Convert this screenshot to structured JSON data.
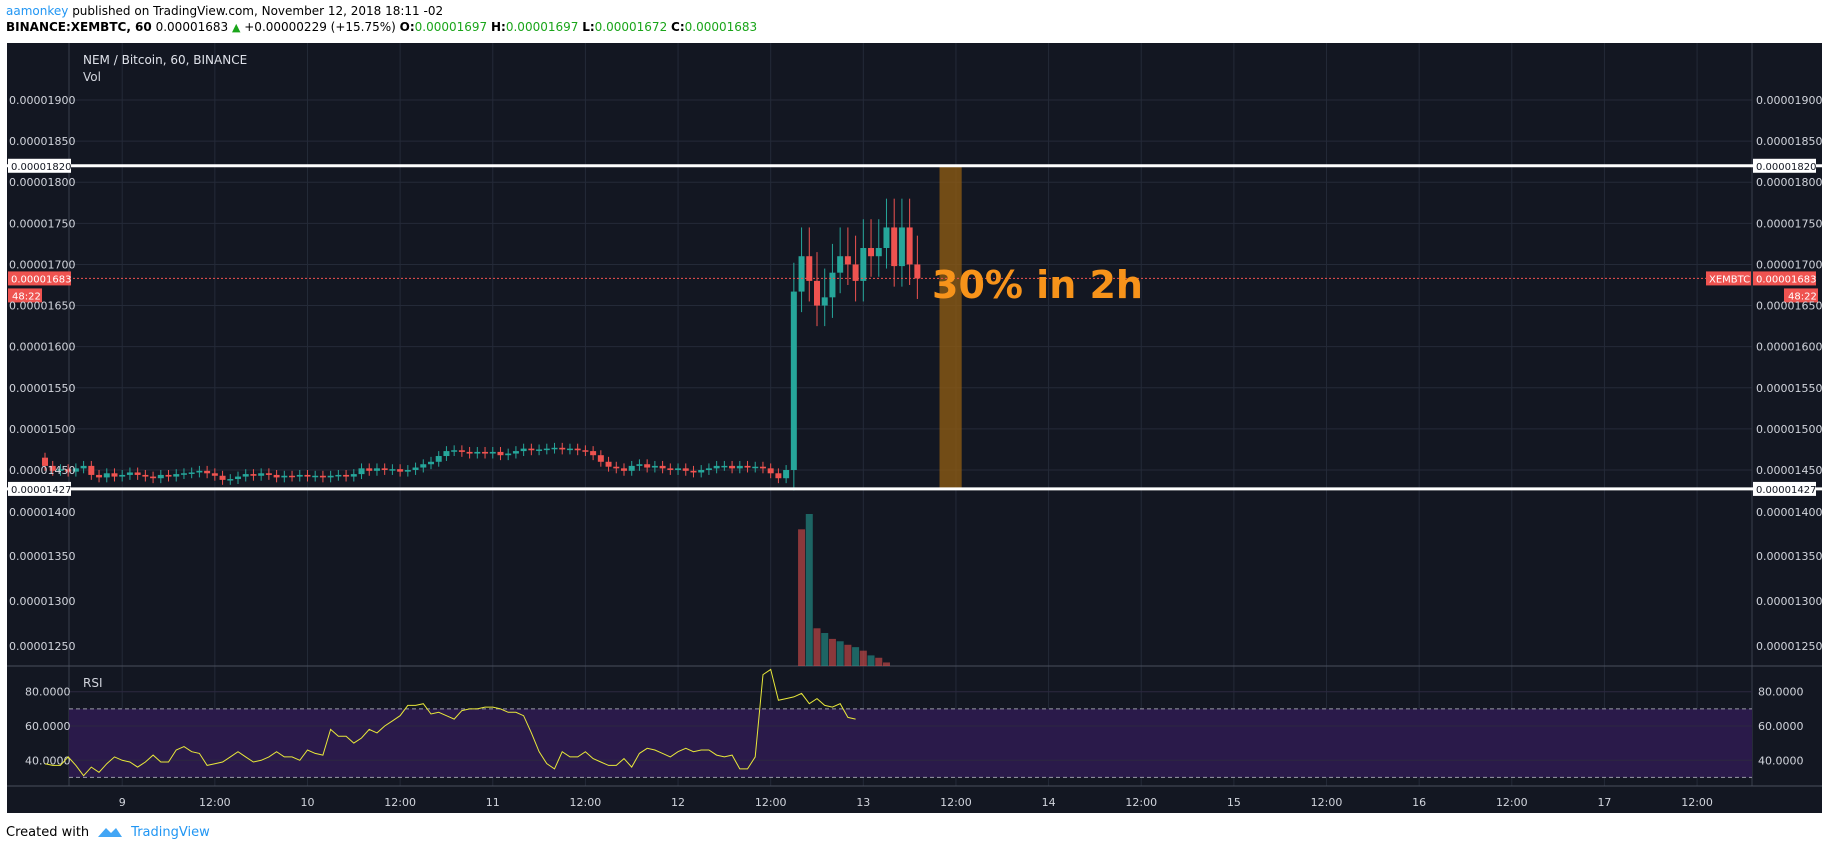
{
  "header": {
    "author": "aamonkey",
    "published": "published on TradingView.com, November 12, 2018 18:11 -02",
    "symbol": "BINANCE:XEMBTC, 60",
    "price": "0.00001683",
    "change": "+0.00000229 (+15.75%)",
    "o_label": "O:",
    "o_value": "0.00001697",
    "h_label": "H:",
    "h_value": "0.00001697",
    "l_label": "L:",
    "l_value": "0.00001672",
    "c_label": "C:",
    "c_value": "0.00001683"
  },
  "footer": {
    "created_with": "Created with",
    "brand": "TradingView"
  },
  "colors": {
    "background": "#131722",
    "up": "#26a69a",
    "down": "#ef5350",
    "rsi_line": "#e8e83a",
    "rsi_band": "#2a1a4a",
    "highlight": "#8b5a14",
    "annotation": "#f7931a",
    "hline": "#ffffff"
  },
  "chart_data": [
    {
      "type": "candlestick",
      "title": "NEM / Bitcoin, 60, BINANCE",
      "last_price_label": "0.00001683",
      "last_price_symbol": "XEMBTC",
      "countdown": "48:22",
      "annotation": "30% in 2h",
      "horizontal_lines": [
        1.82e-05,
        1.427e-05
      ],
      "horizontal_line_labels": [
        "0.00001820",
        "0.00001427"
      ],
      "highlight_box": {
        "from_hour": 116,
        "to_hour": 119,
        "low": 1.427e-05,
        "high": 1.82e-05
      },
      "ylim": [
        1.4e-05,
        1.93e-05
      ],
      "y_ticks": [
        "0.00001900",
        "0.00001850",
        "0.00001800",
        "0.00001750",
        "0.00001700",
        "0.00001650",
        "0.00001600",
        "0.00001550",
        "0.00001500",
        "0.00001450"
      ],
      "y_tick_values": [
        1.9e-05,
        1.85e-05,
        1.8e-05,
        1.75e-05,
        1.7e-05,
        1.65e-05,
        1.6e-05,
        1.55e-05,
        1.5e-05,
        1.45e-05
      ],
      "x_ticks": [
        "9",
        "12:00",
        "10",
        "12:00",
        "11",
        "12:00",
        "12",
        "12:00",
        "13",
        "12:00",
        "14",
        "12:00",
        "15",
        "12:00",
        "16",
        "12:00",
        "17",
        "12:00"
      ],
      "x_tick_hours": [
        10,
        22,
        34,
        46,
        58,
        70,
        82,
        94,
        106,
        118,
        130,
        142,
        154,
        166,
        178,
        190,
        202,
        214
      ],
      "start_date": "2018-11-08 14:00",
      "first_close": 1.455e-05,
      "closes": [
        1.455e-05,
        1.449e-05,
        1.451e-05,
        1.448e-05,
        1.452e-05,
        1.455e-05,
        1.444e-05,
        1.441e-05,
        1.446e-05,
        1.442e-05,
        1.444e-05,
        1.447e-05,
        1.444e-05,
        1.442e-05,
        1.44e-05,
        1.444e-05,
        1.442e-05,
        1.445e-05,
        1.446e-05,
        1.447e-05,
        1.449e-05,
        1.446e-05,
        1.443e-05,
        1.438e-05,
        1.439e-05,
        1.442e-05,
        1.445e-05,
        1.443e-05,
        1.446e-05,
        1.444e-05,
        1.441e-05,
        1.443e-05,
        1.442e-05,
        1.444e-05,
        1.442e-05,
        1.443e-05,
        1.441e-05,
        1.443e-05,
        1.444e-05,
        1.442e-05,
        1.445e-05,
        1.452e-05,
        1.449e-05,
        1.452e-05,
        1.45e-05,
        1.451e-05,
        1.448e-05,
        1.45e-05,
        1.453e-05,
        1.457e-05,
        1.46e-05,
        1.467e-05,
        1.473e-05,
        1.474e-05,
        1.472e-05,
        1.47e-05,
        1.472e-05,
        1.47e-05,
        1.472e-05,
        1.468e-05,
        1.47e-05,
        1.473e-05,
        1.476e-05,
        1.474e-05,
        1.475e-05,
        1.476e-05,
        1.477e-05,
        1.475e-05,
        1.476e-05,
        1.474e-05,
        1.473e-05,
        1.468e-05,
        1.46e-05,
        1.454e-05,
        1.452e-05,
        1.449e-05,
        1.455e-05,
        1.457e-05,
        1.453e-05,
        1.455e-05,
        1.452e-05,
        1.45e-05,
        1.452e-05,
        1.449e-05,
        1.447e-05,
        1.45e-05,
        1.452e-05,
        1.455e-05,
        1.455e-05,
        1.452e-05,
        1.455e-05,
        1.453e-05,
        1.454e-05,
        1.452e-05,
        1.446e-05,
        1.44e-05,
        1.45e-05,
        1.667e-05,
        1.71e-05,
        1.68e-05,
        1.65e-05,
        1.66e-05,
        1.69e-05,
        1.71e-05,
        1.7e-05,
        1.68e-05,
        1.72e-05,
        1.71e-05,
        1.72e-05,
        1.745e-05,
        1.698e-05,
        1.745e-05,
        1.7e-05,
        1.683e-05
      ],
      "volume": {
        "label": "Vol",
        "hours": [
          98,
          99,
          100,
          101,
          102,
          103,
          104,
          105,
          106,
          107,
          108,
          109
        ],
        "values": [
          1.16,
          1.29,
          0.32,
          0.28,
          0.23,
          0.21,
          0.18,
          0.16,
          0.13,
          0.09,
          0.07,
          0.03
        ],
        "directions": [
          "down",
          "up",
          "down",
          "up",
          "down",
          "up",
          "down",
          "up",
          "down",
          "up",
          "down",
          "down"
        ],
        "ylim": [
          1.2,
          0
        ],
        "y_ticks": [
          "0.00001400",
          "0.00001350",
          "0.00001300",
          "0.00001250"
        ]
      },
      "rsi": {
        "label": "RSI",
        "ylim": [
          25,
          95
        ],
        "band": [
          30,
          70
        ],
        "y_ticks": [
          "80.0000",
          "60.0000",
          "40.0000"
        ],
        "y_tick_values": [
          80,
          60,
          40
        ],
        "values": [
          38,
          37,
          37,
          42,
          37,
          31,
          36,
          33,
          38,
          42,
          40,
          39,
          36,
          39,
          43,
          39,
          39,
          46,
          48,
          45,
          44,
          37,
          38,
          39,
          42,
          45,
          42,
          39,
          40,
          42,
          45,
          42,
          42,
          40,
          46,
          44,
          43,
          58,
          54,
          54,
          50,
          53,
          58,
          56,
          60,
          63,
          66,
          72,
          72,
          73,
          67,
          68,
          66,
          64,
          69,
          70,
          70,
          71,
          71,
          70,
          68,
          68,
          66,
          56,
          45,
          38,
          35,
          45,
          42,
          42,
          45,
          41,
          39,
          37,
          37,
          41,
          36,
          44,
          47,
          46,
          44,
          42,
          45,
          47,
          45,
          46,
          46,
          43,
          42,
          43,
          35,
          35,
          42,
          90,
          93,
          75,
          76,
          77,
          79,
          73,
          76,
          72,
          71,
          73,
          65,
          64
        ]
      }
    }
  ]
}
